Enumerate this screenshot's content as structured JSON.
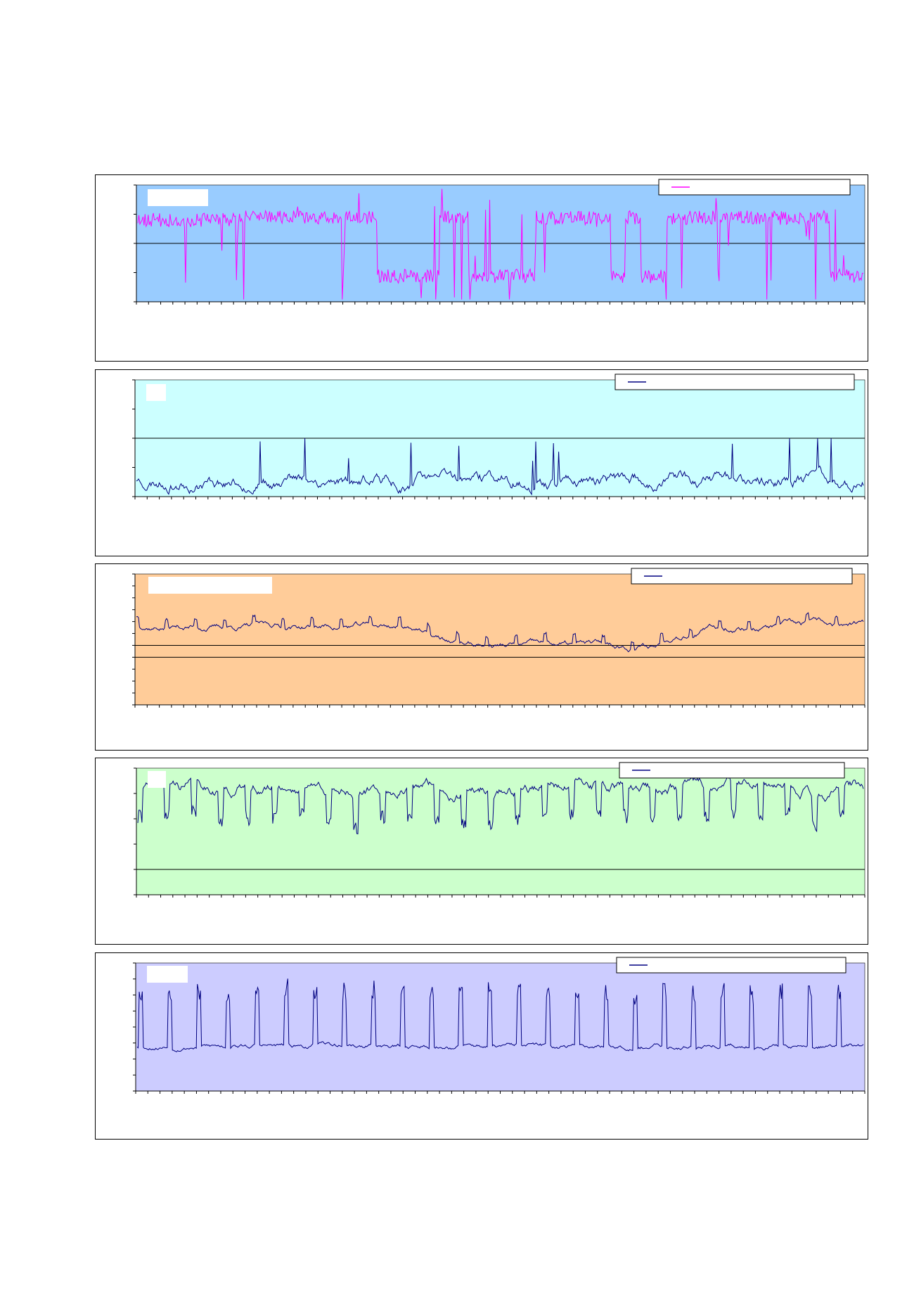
{
  "charts": [
    {
      "id": "chart-1",
      "type": "line",
      "background": "#99CCFF",
      "line_color": "#FF00FF",
      "yticks": 4,
      "ref_lines": [
        2
      ],
      "series_seed": 11,
      "style": "switching",
      "title_box": true,
      "legend_box": true
    },
    {
      "id": "chart-2",
      "type": "line",
      "background": "#CCFFFF",
      "line_color": "#000080",
      "yticks": 4,
      "ref_lines": [
        2
      ],
      "series_seed": 23,
      "style": "low-noise",
      "title_box": true,
      "legend_box": true
    },
    {
      "id": "chart-3",
      "type": "line",
      "background": "#FFCC99",
      "line_color": "#000080",
      "yticks": 11,
      "ref_lines": [
        5,
        4
      ],
      "series_seed": 37,
      "style": "mid-wave",
      "title_box": true,
      "legend_box": true
    },
    {
      "id": "chart-4",
      "type": "line",
      "background": "#CCFFCC",
      "line_color": "#000080",
      "yticks": 5,
      "ref_lines": [
        1
      ],
      "series_seed": 41,
      "style": "high-dips",
      "title_box": true,
      "legend_box": true
    },
    {
      "id": "chart-5",
      "type": "line",
      "background": "#CCCCFF",
      "line_color": "#000080",
      "yticks": 8,
      "ref_lines": [],
      "series_seed": 53,
      "style": "spikes",
      "title_box": true,
      "legend_box": true
    }
  ]
}
